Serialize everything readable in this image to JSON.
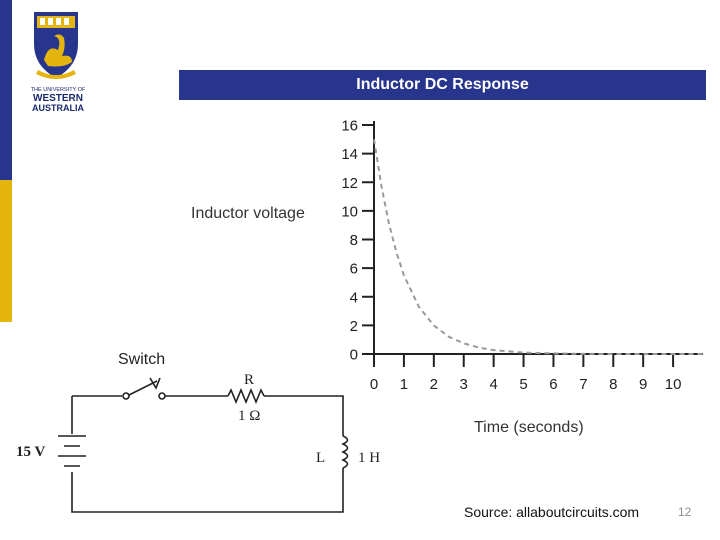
{
  "slide": {
    "title": "Inductor DC Response",
    "source": "Source: allaboutcircuits.com",
    "page_number": "12",
    "colors": {
      "accent_blue": "#27358c",
      "accent_gold": "#e3b50e",
      "title_bar": "#27358c"
    }
  },
  "logo": {
    "line1": "THE UNIVERSITY OF",
    "line2": "WESTERN",
    "line3": "AUSTRALIA",
    "icon": "swan-crest-icon"
  },
  "circuit": {
    "switch_label": "Switch",
    "resistor_label": "R",
    "resistor_value": "1 Ω",
    "inductor_label": "L",
    "inductor_value": "1 H",
    "source_label": "15 V"
  },
  "chart_data": {
    "type": "line",
    "ylabel": "Inductor voltage",
    "xlabel": "Time (seconds)",
    "xlim": [
      0,
      11
    ],
    "ylim": [
      0,
      16
    ],
    "x_ticks": [
      0,
      1,
      2,
      3,
      4,
      5,
      6,
      7,
      8,
      9,
      10
    ],
    "y_ticks": [
      0,
      2,
      4,
      6,
      8,
      10,
      12,
      14,
      16
    ],
    "grid": false,
    "series": [
      {
        "line_style": "dashed",
        "x": [
          0,
          0.25,
          0.5,
          0.75,
          1,
          1.5,
          2,
          2.5,
          3,
          3.5,
          4,
          5,
          6,
          7,
          8,
          9,
          10,
          11
        ],
        "values": [
          15,
          11.7,
          9.1,
          7.1,
          5.5,
          3.3,
          2.0,
          1.2,
          0.75,
          0.45,
          0.27,
          0.1,
          0.04,
          0.01,
          0,
          0,
          0,
          0
        ]
      }
    ]
  }
}
